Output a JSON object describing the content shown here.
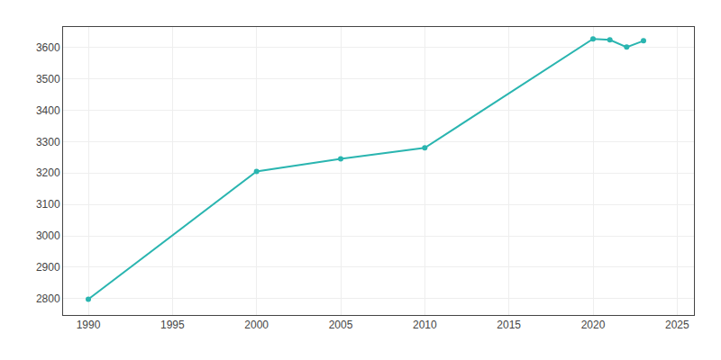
{
  "chart_data": {
    "type": "line",
    "x": [
      1990,
      2000,
      2005,
      2010,
      2020,
      2021,
      2022,
      2023
    ],
    "values": [
      2798,
      3205,
      3245,
      3280,
      3627,
      3624,
      3601,
      3621
    ],
    "color": "#2ab5b0",
    "marker": "circle",
    "xlim": [
      1988.5,
      2026
    ],
    "ylim": [
      2748,
      3665
    ],
    "xticks": [
      1990,
      1995,
      2000,
      2005,
      2010,
      2015,
      2020,
      2025
    ],
    "yticks": [
      2800,
      2900,
      3000,
      3100,
      3200,
      3300,
      3400,
      3500,
      3600
    ],
    "grid": true
  }
}
